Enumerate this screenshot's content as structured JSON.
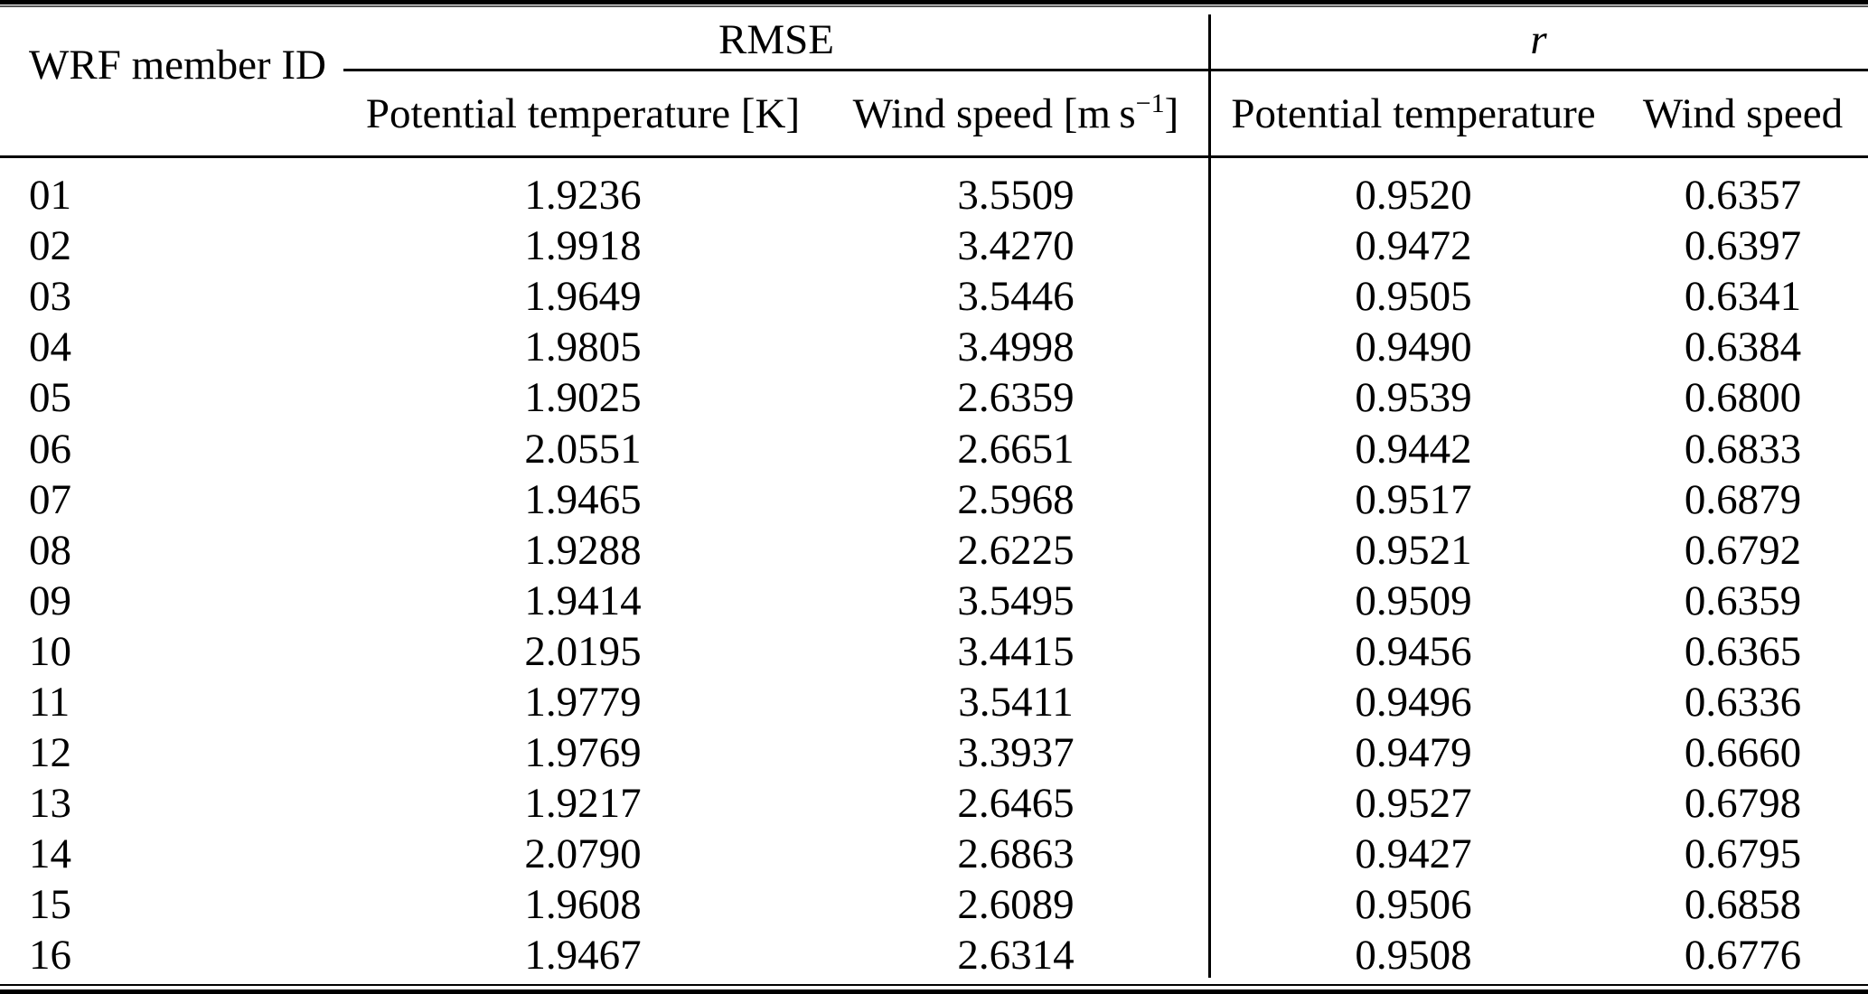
{
  "table": {
    "id_header": "WRF member ID",
    "group_headers": {
      "rmse": "RMSE",
      "r": "r"
    },
    "sub_headers": {
      "rmse_pt": "Potential temperature [K]",
      "rmse_ws_prefix": "Wind speed [m s",
      "rmse_ws_sup": "−1",
      "rmse_ws_suffix": "]",
      "r_pt": "Potential temperature",
      "r_ws": "Wind speed"
    },
    "rows": [
      {
        "id": "01",
        "rmse_pt": "1.9236",
        "rmse_ws": "3.5509",
        "r_pt": "0.9520",
        "r_ws": "0.6357"
      },
      {
        "id": "02",
        "rmse_pt": "1.9918",
        "rmse_ws": "3.4270",
        "r_pt": "0.9472",
        "r_ws": "0.6397"
      },
      {
        "id": "03",
        "rmse_pt": "1.9649",
        "rmse_ws": "3.5446",
        "r_pt": "0.9505",
        "r_ws": "0.6341"
      },
      {
        "id": "04",
        "rmse_pt": "1.9805",
        "rmse_ws": "3.4998",
        "r_pt": "0.9490",
        "r_ws": "0.6384"
      },
      {
        "id": "05",
        "rmse_pt": "1.9025",
        "rmse_ws": "2.6359",
        "r_pt": "0.9539",
        "r_ws": "0.6800"
      },
      {
        "id": "06",
        "rmse_pt": "2.0551",
        "rmse_ws": "2.6651",
        "r_pt": "0.9442",
        "r_ws": "0.6833"
      },
      {
        "id": "07",
        "rmse_pt": "1.9465",
        "rmse_ws": "2.5968",
        "r_pt": "0.9517",
        "r_ws": "0.6879"
      },
      {
        "id": "08",
        "rmse_pt": "1.9288",
        "rmse_ws": "2.6225",
        "r_pt": "0.9521",
        "r_ws": "0.6792"
      },
      {
        "id": "09",
        "rmse_pt": "1.9414",
        "rmse_ws": "3.5495",
        "r_pt": "0.9509",
        "r_ws": "0.6359"
      },
      {
        "id": "10",
        "rmse_pt": "2.0195",
        "rmse_ws": "3.4415",
        "r_pt": "0.9456",
        "r_ws": "0.6365"
      },
      {
        "id": "11",
        "rmse_pt": "1.9779",
        "rmse_ws": "3.5411",
        "r_pt": "0.9496",
        "r_ws": "0.6336"
      },
      {
        "id": "12",
        "rmse_pt": "1.9769",
        "rmse_ws": "3.3937",
        "r_pt": "0.9479",
        "r_ws": "0.6660"
      },
      {
        "id": "13",
        "rmse_pt": "1.9217",
        "rmse_ws": "2.6465",
        "r_pt": "0.9527",
        "r_ws": "0.6798"
      },
      {
        "id": "14",
        "rmse_pt": "2.0790",
        "rmse_ws": "2.6863",
        "r_pt": "0.9427",
        "r_ws": "0.6795"
      },
      {
        "id": "15",
        "rmse_pt": "1.9608",
        "rmse_ws": "2.6089",
        "r_pt": "0.9506",
        "r_ws": "0.6858"
      },
      {
        "id": "16",
        "rmse_pt": "1.9467",
        "rmse_ws": "2.6314",
        "r_pt": "0.9508",
        "r_ws": "0.6776"
      }
    ]
  }
}
